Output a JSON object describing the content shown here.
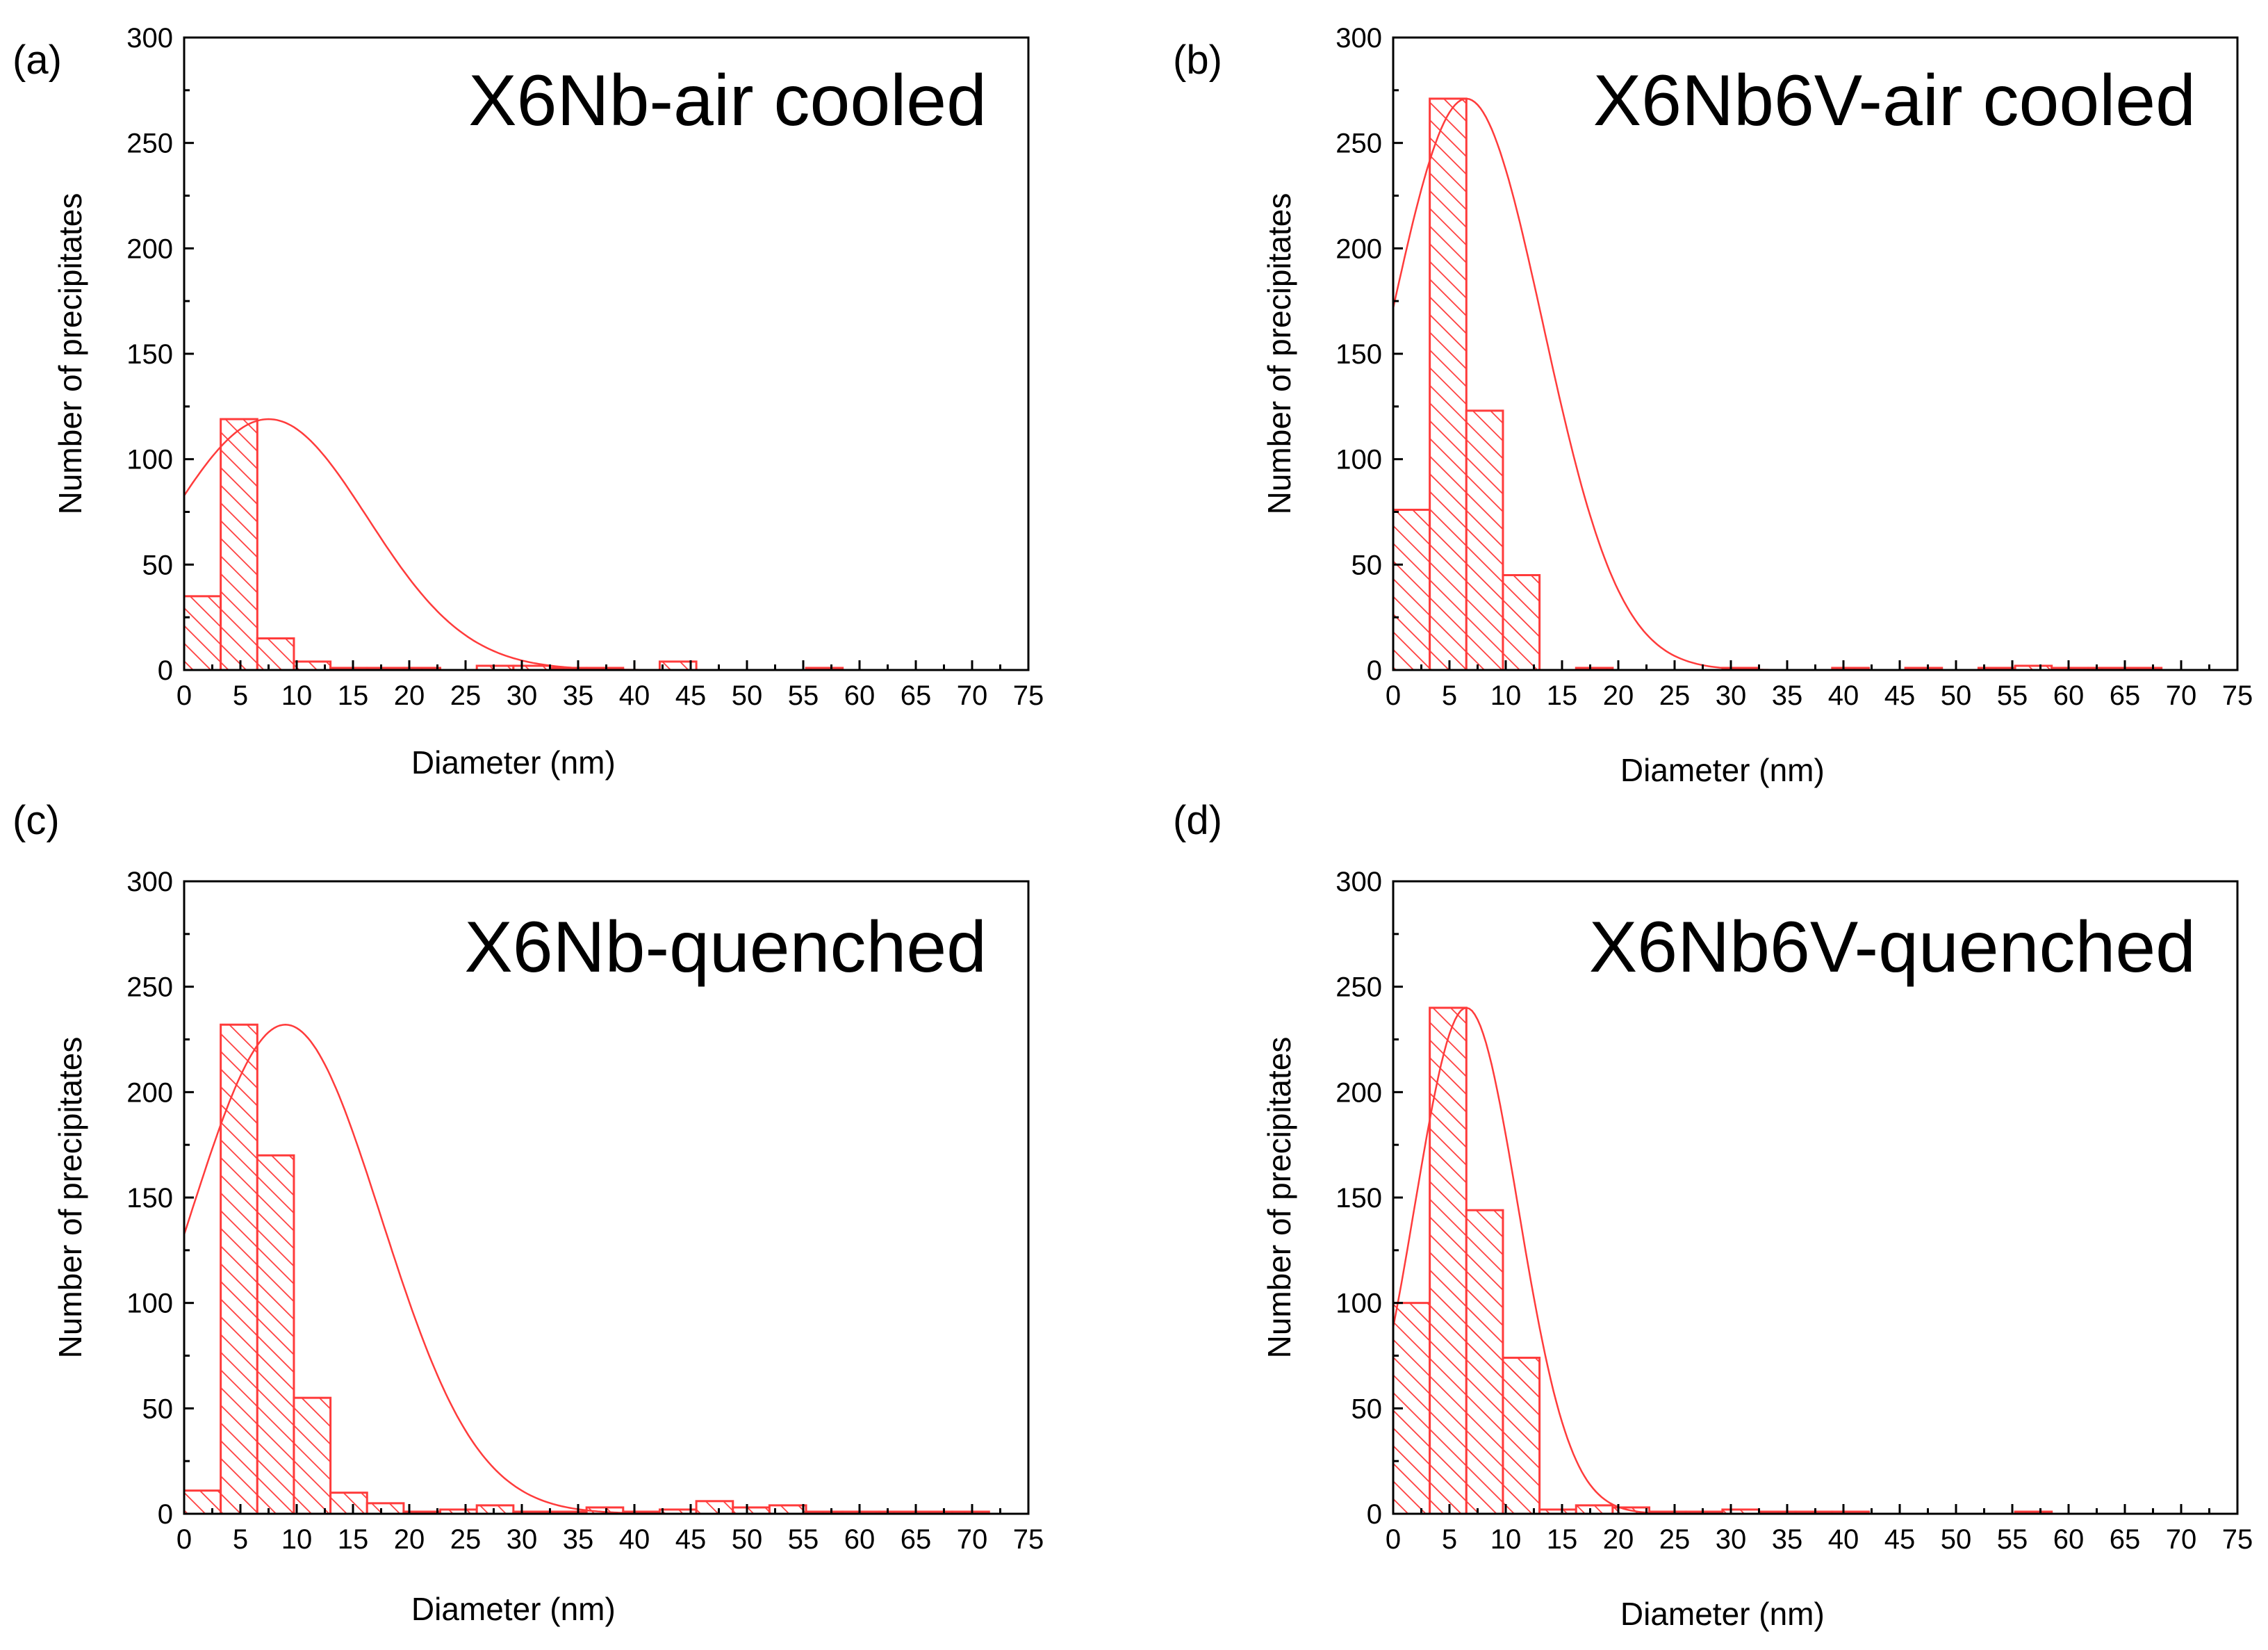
{
  "colors": {
    "accent": "#ff3b3b",
    "axis": "#000000"
  },
  "chart_data": [
    {
      "type": "bar",
      "panel_label": "(a)",
      "title": "X6Nb-air cooled",
      "xlabel": "Diameter (nm)",
      "ylabel": "Number of precipitates",
      "xlim": [
        0,
        75
      ],
      "ylim": [
        0,
        300
      ],
      "xticks": [
        0,
        5,
        10,
        15,
        20,
        25,
        30,
        35,
        40,
        45,
        50,
        55,
        60,
        65,
        70,
        75
      ],
      "yticks": [
        0,
        50,
        100,
        150,
        200,
        250,
        300
      ],
      "bin_width": 3.25,
      "bins": [
        {
          "x0": 0,
          "count": 35
        },
        {
          "x0": 3.25,
          "count": 119
        },
        {
          "x0": 6.5,
          "count": 15
        },
        {
          "x0": 9.75,
          "count": 4
        },
        {
          "x0": 13,
          "count": 1
        },
        {
          "x0": 16.25,
          "count": 1
        },
        {
          "x0": 19.5,
          "count": 1
        },
        {
          "x0": 26,
          "count": 2
        },
        {
          "x0": 29.25,
          "count": 2
        },
        {
          "x0": 32.5,
          "count": 1
        },
        {
          "x0": 35.75,
          "count": 1
        },
        {
          "x0": 42.25,
          "count": 4
        },
        {
          "x0": 55.25,
          "count": 1
        }
      ],
      "fit": {
        "type": "gaussian",
        "peak": 119,
        "center": 7.5,
        "sigma": 8.8
      }
    },
    {
      "type": "bar",
      "panel_label": "(b)",
      "title": "X6Nb6V-air cooled",
      "xlabel": "Diameter (nm)",
      "ylabel": "Number of precipitates",
      "xlim": [
        0,
        75
      ],
      "ylim": [
        0,
        300
      ],
      "xticks": [
        0,
        5,
        10,
        15,
        20,
        25,
        30,
        35,
        40,
        45,
        50,
        55,
        60,
        65,
        70,
        75
      ],
      "yticks": [
        0,
        50,
        100,
        150,
        200,
        250,
        300
      ],
      "bin_width": 3.25,
      "bins": [
        {
          "x0": 0,
          "count": 76
        },
        {
          "x0": 3.25,
          "count": 271
        },
        {
          "x0": 6.5,
          "count": 123
        },
        {
          "x0": 9.75,
          "count": 45
        },
        {
          "x0": 16.25,
          "count": 1
        },
        {
          "x0": 29.25,
          "count": 1
        },
        {
          "x0": 39,
          "count": 1
        },
        {
          "x0": 45.5,
          "count": 1
        },
        {
          "x0": 52,
          "count": 1
        },
        {
          "x0": 55.25,
          "count": 2
        },
        {
          "x0": 58.5,
          "count": 1
        },
        {
          "x0": 61.75,
          "count": 1
        },
        {
          "x0": 65,
          "count": 1
        }
      ],
      "fit": {
        "type": "gaussian",
        "peak": 271,
        "center": 6.5,
        "sigma": 6.8
      }
    },
    {
      "type": "bar",
      "panel_label": "(c)",
      "title": "X6Nb-quenched",
      "xlabel": "Diameter (nm)",
      "ylabel": "Number of precipitates",
      "xlim": [
        0,
        75
      ],
      "ylim": [
        0,
        300
      ],
      "xticks": [
        0,
        5,
        10,
        15,
        20,
        25,
        30,
        35,
        40,
        45,
        50,
        55,
        60,
        65,
        70,
        75
      ],
      "yticks": [
        0,
        50,
        100,
        150,
        200,
        250,
        300
      ],
      "bin_width": 3.25,
      "bins": [
        {
          "x0": 0,
          "count": 11
        },
        {
          "x0": 3.25,
          "count": 232
        },
        {
          "x0": 6.5,
          "count": 170
        },
        {
          "x0": 9.75,
          "count": 55
        },
        {
          "x0": 13,
          "count": 10
        },
        {
          "x0": 16.25,
          "count": 5
        },
        {
          "x0": 19.5,
          "count": 1
        },
        {
          "x0": 22.75,
          "count": 2
        },
        {
          "x0": 26,
          "count": 4
        },
        {
          "x0": 29.25,
          "count": 1
        },
        {
          "x0": 32.5,
          "count": 1
        },
        {
          "x0": 35.75,
          "count": 3
        },
        {
          "x0": 39,
          "count": 1
        },
        {
          "x0": 42.25,
          "count": 2
        },
        {
          "x0": 45.5,
          "count": 6
        },
        {
          "x0": 48.75,
          "count": 3
        },
        {
          "x0": 52,
          "count": 4
        },
        {
          "x0": 55.25,
          "count": 1
        },
        {
          "x0": 58.5,
          "count": 1
        },
        {
          "x0": 61.75,
          "count": 1
        },
        {
          "x0": 65,
          "count": 1
        },
        {
          "x0": 68.25,
          "count": 1
        }
      ],
      "fit": {
        "type": "gaussian",
        "peak": 232,
        "center": 9,
        "sigma": 8.5
      }
    },
    {
      "type": "bar",
      "panel_label": "(d)",
      "title": "X6Nb6V-quenched",
      "xlabel": "Diameter (nm)",
      "ylabel": "Number of precipitates",
      "xlim": [
        0,
        75
      ],
      "ylim": [
        0,
        300
      ],
      "xticks": [
        0,
        5,
        10,
        15,
        20,
        25,
        30,
        35,
        40,
        45,
        50,
        55,
        60,
        65,
        70,
        75
      ],
      "yticks": [
        0,
        50,
        100,
        150,
        200,
        250,
        300
      ],
      "bin_width": 3.25,
      "bins": [
        {
          "x0": 0,
          "count": 100
        },
        {
          "x0": 3.25,
          "count": 240
        },
        {
          "x0": 6.5,
          "count": 144
        },
        {
          "x0": 9.75,
          "count": 74
        },
        {
          "x0": 13,
          "count": 2
        },
        {
          "x0": 16.25,
          "count": 4
        },
        {
          "x0": 19.5,
          "count": 3
        },
        {
          "x0": 22.75,
          "count": 1
        },
        {
          "x0": 26,
          "count": 1
        },
        {
          "x0": 29.25,
          "count": 2
        },
        {
          "x0": 32.5,
          "count": 1
        },
        {
          "x0": 35.75,
          "count": 1
        },
        {
          "x0": 39,
          "count": 1
        },
        {
          "x0": 55.25,
          "count": 1
        }
      ],
      "fit": {
        "type": "gaussian",
        "peak": 240,
        "center": 6.5,
        "sigma": 4.6
      }
    }
  ]
}
